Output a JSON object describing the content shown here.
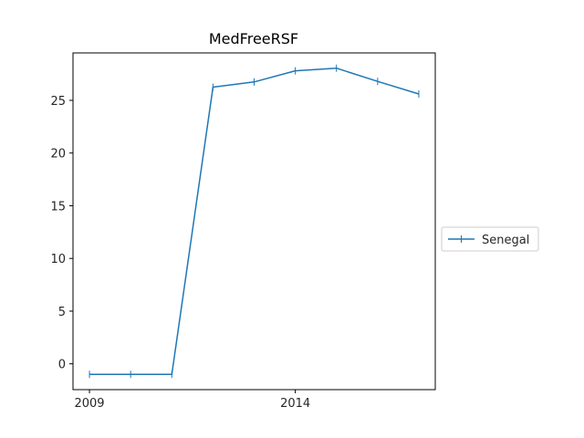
{
  "chart_data": {
    "type": "line",
    "title": "MedFreeRSF",
    "xlabel": "",
    "ylabel": "",
    "x": [
      2009,
      2010,
      2011,
      2012,
      2013,
      2014,
      2015,
      2016,
      2017
    ],
    "series": [
      {
        "name": "Senegal",
        "color": "#1f77b4",
        "marker": "plus",
        "values": [
          -1,
          -1,
          -1,
          26.25,
          26.75,
          27.8,
          28.05,
          26.8,
          25.6
        ]
      }
    ],
    "x_ticks": [
      "2009",
      "2014"
    ],
    "y_ticks": [
      "0",
      "5",
      "10",
      "15",
      "20",
      "25"
    ],
    "x_tick_values": [
      2009,
      2014
    ],
    "y_tick_values": [
      0,
      5,
      10,
      15,
      20,
      25
    ],
    "xlim": [
      2008.6,
      2017.4
    ],
    "ylim": [
      -2.45,
      29.5
    ],
    "grid": false,
    "legend_position": "right-outside"
  }
}
